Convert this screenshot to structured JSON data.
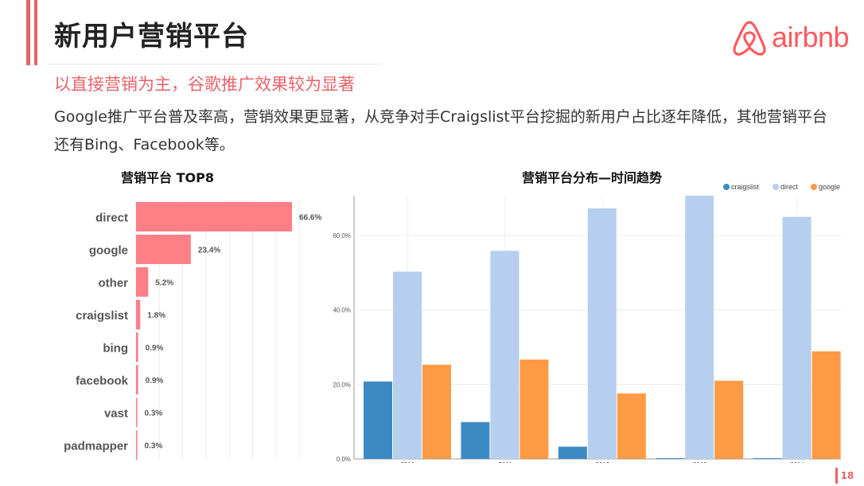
{
  "header": {
    "title": "新用户营销平台",
    "subtitle": "以直接营销为主，谷歌推广效果较为显著",
    "body_text": "Google推广平台普及率高，营销效果更显著，从竞争对手Craigslist平台挖掘的新用户占比逐年降低，其他营销平台还有Bing、Facebook等。",
    "logo_text": "airbnb",
    "page_number": "18"
  },
  "colors": {
    "accent": "#e8636a",
    "brand": "#ff5a5f",
    "bar_left": "#ff7f86",
    "craigslist": "#3c8ac4",
    "direct": "#b6cfee",
    "google": "#ff9a45"
  },
  "chart_data": [
    {
      "type": "bar",
      "orientation": "horizontal",
      "title": "营销平台 TOP8",
      "categories": [
        "direct",
        "google",
        "other",
        "craigslist",
        "bing",
        "facebook",
        "vast",
        "padmapper"
      ],
      "values": [
        66.6,
        23.4,
        5.2,
        1.8,
        0.9,
        0.9,
        0.3,
        0.3
      ],
      "value_labels": [
        "66.6%",
        "23.4%",
        "5.2%",
        "1.8%",
        "0.9%",
        "0.9%",
        "0.3%",
        "0.3%"
      ],
      "xlim": [
        0,
        66.6
      ],
      "grid": true
    },
    {
      "type": "bar",
      "title": "营销平台分布—时间趋势",
      "categories": [
        "2010",
        "2011",
        "2012",
        "2013",
        "2014"
      ],
      "series": [
        {
          "name": "craigslist",
          "values": [
            20.8,
            9.9,
            3.3,
            0.2,
            0.2
          ]
        },
        {
          "name": "direct",
          "values": [
            50.3,
            55.9,
            67.3,
            70.7,
            65.0
          ]
        },
        {
          "name": "google",
          "values": [
            25.3,
            26.7,
            17.6,
            21.0,
            28.9
          ]
        }
      ],
      "yticks": [
        "0.0%",
        "20.0%",
        "40.0%",
        "60.0%"
      ],
      "ylim": [
        0,
        70.7
      ],
      "grid": true,
      "legend": "top-right"
    }
  ]
}
